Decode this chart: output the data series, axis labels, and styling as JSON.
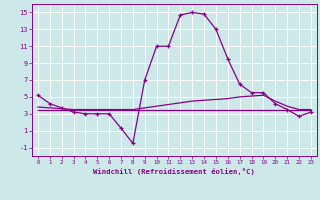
{
  "xlabel": "Windchill (Refroidissement éolien,°C)",
  "background_color": "#cce8e8",
  "grid_color": "#b0d8d8",
  "line_color": "#880088",
  "x_hours": [
    0,
    1,
    2,
    3,
    4,
    5,
    6,
    7,
    8,
    9,
    10,
    11,
    12,
    13,
    14,
    15,
    16,
    17,
    18,
    19,
    20,
    21,
    22,
    23
  ],
  "main_line": [
    5.2,
    4.2,
    3.7,
    3.2,
    3.0,
    3.0,
    3.0,
    1.3,
    -0.5,
    7.0,
    11.0,
    11.0,
    14.7,
    15.0,
    14.8,
    13.0,
    9.5,
    6.5,
    5.5,
    5.5,
    4.2,
    3.5,
    2.7,
    3.2
  ],
  "flat_line": [
    3.5,
    3.5,
    3.5,
    3.5,
    3.5,
    3.5,
    3.5,
    3.5,
    3.5,
    3.5,
    3.5,
    3.5,
    3.5,
    3.5,
    3.5,
    3.5,
    3.5,
    3.5,
    3.5,
    3.5,
    3.5,
    3.5,
    3.5,
    3.5
  ],
  "avg_rising_line": [
    3.8,
    3.7,
    3.6,
    3.5,
    3.5,
    3.5,
    3.5,
    3.5,
    3.5,
    3.7,
    3.9,
    4.1,
    4.3,
    4.5,
    4.6,
    4.7,
    4.8,
    5.0,
    5.1,
    5.2,
    4.5,
    3.9,
    3.5,
    3.5
  ],
  "ylim": [
    -2,
    16
  ],
  "xlim": [
    -0.5,
    23.5
  ],
  "yticks": [
    -1,
    1,
    3,
    5,
    7,
    9,
    11,
    13,
    15
  ],
  "xticks": [
    0,
    1,
    2,
    3,
    4,
    5,
    6,
    7,
    8,
    9,
    10,
    11,
    12,
    13,
    14,
    15,
    16,
    17,
    18,
    19,
    20,
    21,
    22,
    23
  ]
}
